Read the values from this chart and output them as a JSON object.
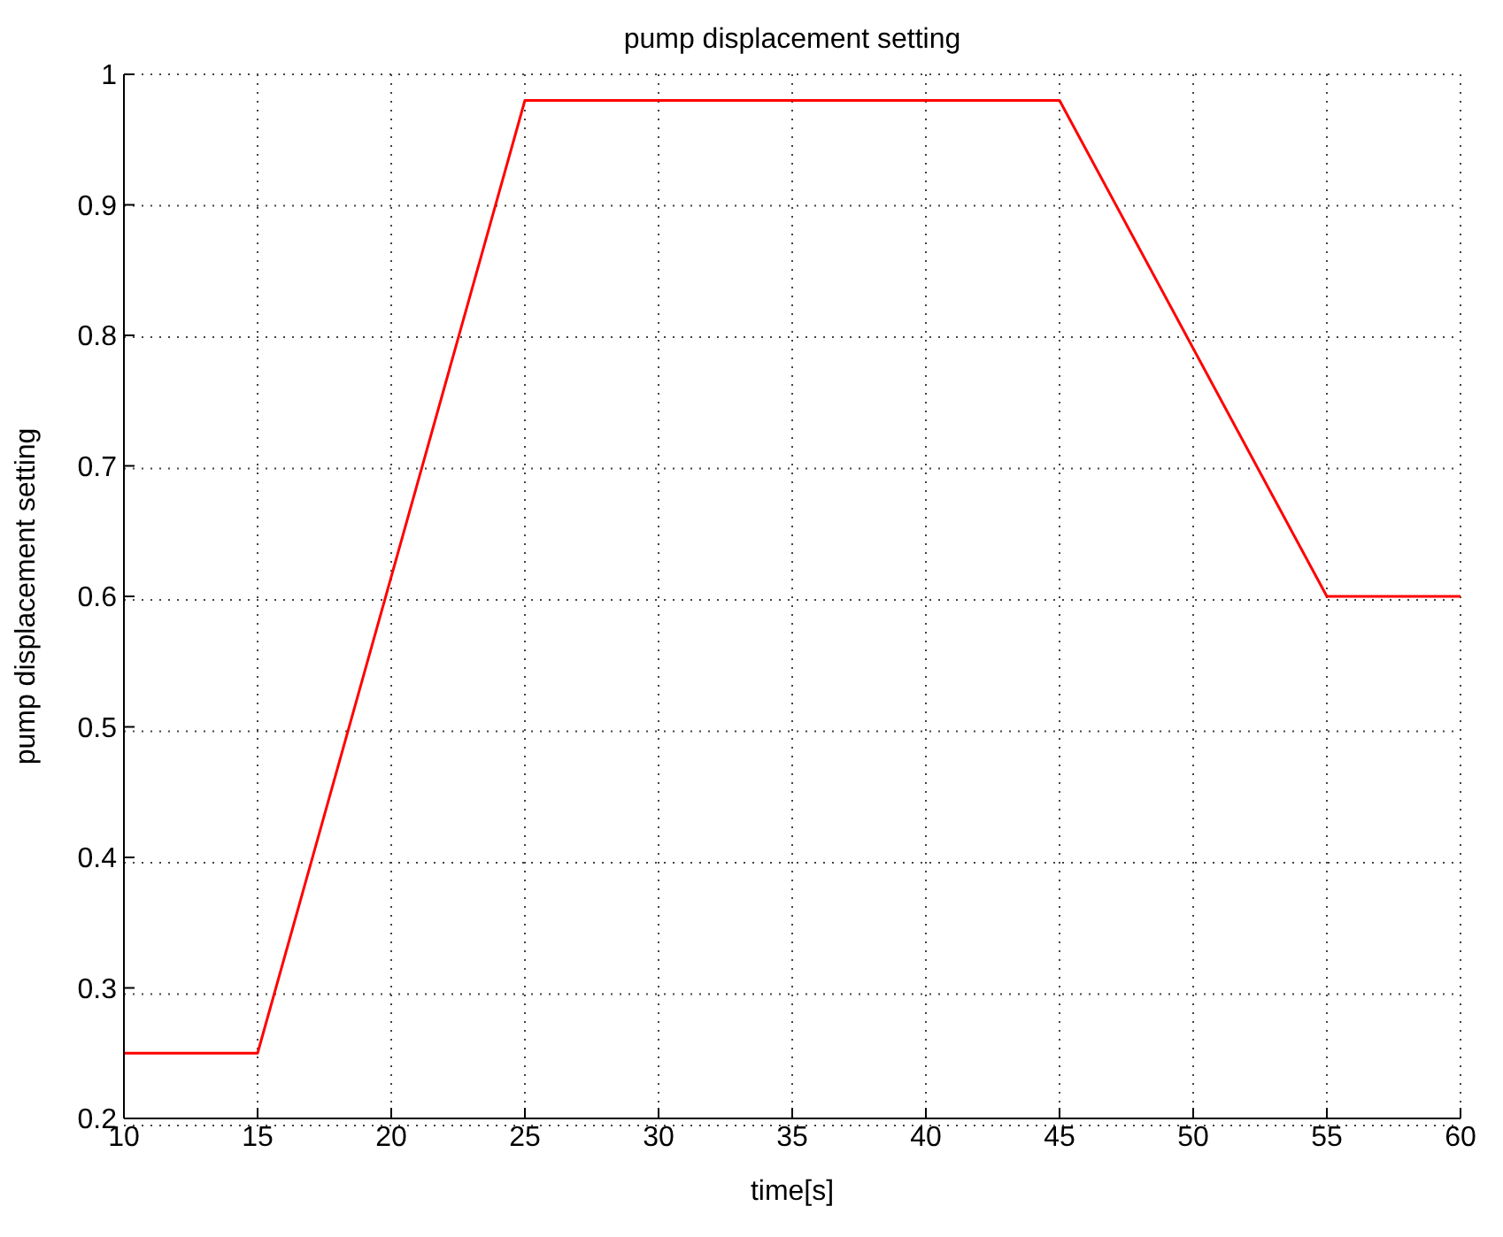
{
  "chart_data": {
    "type": "line",
    "title": "pump displacement setting",
    "xlabel": "time[s]",
    "ylabel": "pump displacement setting",
    "x": [
      10,
      15,
      25,
      45,
      55,
      60
    ],
    "series": [
      {
        "color": "#ff0000",
        "values": [
          0.25,
          0.25,
          0.98,
          0.98,
          0.6,
          0.6
        ]
      }
    ],
    "xlim": [
      10,
      60
    ],
    "xticks": [
      10,
      15,
      20,
      25,
      30,
      35,
      40,
      45,
      50,
      55,
      60
    ],
    "ylim": [
      0.2,
      1
    ],
    "yticks": [
      0.2,
      0.3,
      0.4,
      0.5,
      0.6,
      0.7,
      0.8,
      0.9,
      1
    ],
    "grid": true,
    "legend": false,
    "marker": "none",
    "line_style": "solid"
  }
}
